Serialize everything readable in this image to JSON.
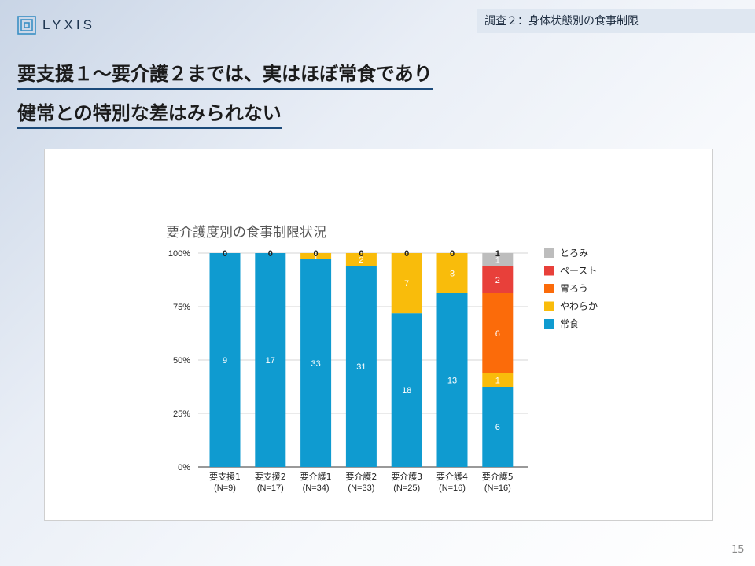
{
  "brand": {
    "name": "LYXIS"
  },
  "header_tag": "調査２：身体状態別の食事制限",
  "headline": {
    "line1": "要支援１〜要介護２までは、実はほぼ常食であり",
    "line2": "健常との特別な差はみられない"
  },
  "page_number": "15",
  "chart_data": {
    "type": "bar",
    "stacked": "percent",
    "title": "要介護度別の食事制限状況",
    "categories": [
      [
        "要支援1",
        "(N=9)"
      ],
      [
        "要支援2",
        "(N=17)"
      ],
      [
        "要介護1",
        "(N=34)"
      ],
      [
        "要介護2",
        "(N=33)"
      ],
      [
        "要介護3",
        "(N=25)"
      ],
      [
        "要介護4",
        "(N=16)"
      ],
      [
        "要介護5",
        "(N=16)"
      ]
    ],
    "series": [
      {
        "name": "常食",
        "color": "#0f9bd0",
        "values": [
          9,
          17,
          33,
          31,
          18,
          13,
          6
        ]
      },
      {
        "name": "やわらか",
        "color": "#f9bc0b",
        "values": [
          0,
          0,
          1,
          2,
          7,
          3,
          1
        ]
      },
      {
        "name": "胃ろう",
        "color": "#fb6b0a",
        "values": [
          0,
          0,
          0,
          0,
          0,
          0,
          6
        ]
      },
      {
        "name": "ペースト",
        "color": "#e8403a",
        "values": [
          0,
          0,
          0,
          0,
          0,
          0,
          2
        ]
      },
      {
        "name": "とろみ",
        "color": "#bdbdbd",
        "values": [
          0,
          0,
          0,
          0,
          0,
          0,
          1
        ]
      }
    ],
    "top_labels": [
      "0",
      "0",
      "0",
      "0",
      "0",
      "0",
      "1"
    ],
    "y_ticks": [
      "0%",
      "25%",
      "50%",
      "75%",
      "100%"
    ],
    "ylim": [
      0,
      100
    ],
    "legend_position": "right",
    "legend_order": [
      "とろみ",
      "ペースト",
      "胃ろう",
      "やわらか",
      "常食"
    ]
  }
}
